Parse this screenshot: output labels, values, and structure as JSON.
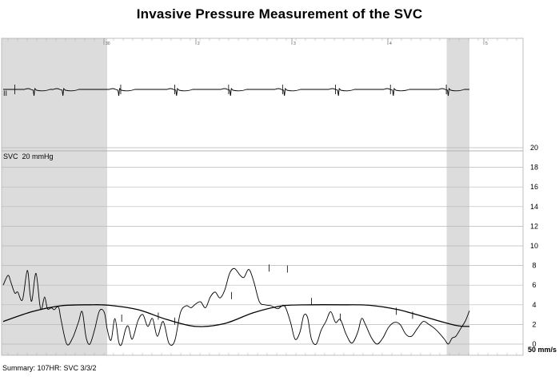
{
  "chart_data": {
    "type": "line",
    "title": "Invasive Pressure Measurement of the SVC",
    "ecg_lead_label": "II",
    "pressure_channel_label": "SVC  20 mmHg",
    "sweep_speed_label": "50 mm/s",
    "summary": "Summary:  107HR: SVC 3/3/2",
    "time_marker_labels": [
      "30",
      "2",
      "3",
      "4",
      "5"
    ],
    "y_axis": {
      "unit": "mmHg",
      "ylim": [
        0,
        20
      ],
      "ticks": [
        0,
        2,
        4,
        6,
        8,
        10,
        12,
        14,
        16,
        18,
        20
      ],
      "grid": true
    },
    "x_axis": {
      "unit": "s",
      "xlim": [
        0,
        5
      ]
    },
    "shaded_regions": [
      {
        "from": 0.0,
        "to": 1.08
      },
      {
        "from": 4.62,
        "to": 4.84
      }
    ],
    "series": [
      {
        "name": "",
        "x": [
          0.0,
          0.05,
          0.08,
          0.12,
          0.15,
          0.2,
          0.25,
          0.28,
          0.3,
          0.34,
          0.38,
          0.4,
          0.43,
          0.46,
          0.5,
          0.53,
          0.56,
          0.58,
          0.6,
          0.66,
          0.72,
          0.78,
          0.82,
          0.86,
          0.9,
          0.95,
          1.0,
          1.05,
          1.08,
          1.12,
          1.16,
          1.2,
          1.23,
          1.27,
          1.3,
          1.34,
          1.4,
          1.45,
          1.5,
          1.55,
          1.6,
          1.66,
          1.72,
          1.78,
          1.84,
          1.9,
          1.95,
          2.0,
          2.05,
          2.1,
          2.15,
          2.2,
          2.25,
          2.3,
          2.35,
          2.4,
          2.46,
          2.5,
          2.55,
          2.6,
          2.66,
          2.72,
          2.78,
          2.85,
          2.92,
          2.98,
          3.03,
          3.08,
          3.12,
          3.16,
          3.2,
          3.25,
          3.3,
          3.35,
          3.4,
          3.45,
          3.5,
          3.56,
          3.62,
          3.68,
          3.72,
          3.76,
          3.82,
          3.88,
          3.94,
          4.0,
          4.06,
          4.12,
          4.18,
          4.24,
          4.3,
          4.36,
          4.42,
          4.5,
          4.58,
          4.62,
          4.66,
          4.7,
          4.75,
          4.8,
          4.84
        ],
        "y": [
          6.0,
          7.0,
          6.3,
          5.2,
          5.3,
          4.5,
          7.5,
          5.0,
          4.5,
          7.2,
          4.0,
          3.6,
          4.8,
          3.6,
          3.7,
          3.5,
          3.8,
          3.6,
          2.5,
          0.0,
          0.6,
          2.2,
          3.3,
          0.7,
          0.0,
          1.5,
          3.4,
          3.2,
          1.5,
          0.4,
          2.6,
          0.2,
          0.0,
          1.5,
          1.8,
          0.5,
          2.4,
          3.0,
          1.8,
          2.6,
          0.8,
          2.3,
          0.1,
          0.3,
          3.2,
          3.9,
          3.7,
          4.1,
          4.3,
          3.7,
          4.8,
          5.3,
          4.7,
          5.5,
          7.2,
          7.7,
          7.0,
          6.8,
          7.6,
          6.4,
          4.3,
          4.0,
          3.9,
          3.6,
          3.9,
          2.3,
          0.5,
          1.2,
          2.9,
          2.7,
          0.5,
          0.0,
          1.4,
          2.3,
          3.3,
          2.2,
          2.5,
          1.0,
          0.1,
          1.2,
          2.6,
          2.0,
          0.7,
          0.0,
          0.6,
          1.7,
          2.2,
          2.0,
          1.0,
          0.8,
          1.6,
          2.3,
          2.0,
          1.4,
          0.5,
          0.0,
          0.6,
          0.8,
          1.6,
          2.4,
          3.4
        ]
      },
      {
        "name": "",
        "x": [
          0.0,
          0.3,
          0.6,
          0.9,
          1.1,
          1.4,
          1.7,
          2.0,
          2.3,
          2.6,
          2.9,
          3.2,
          3.5,
          3.8,
          4.1,
          4.4,
          4.7,
          4.84
        ],
        "y": [
          2.3,
          3.3,
          3.9,
          4.0,
          3.95,
          3.5,
          2.5,
          1.8,
          2.1,
          3.2,
          3.9,
          4.0,
          4.0,
          3.95,
          3.5,
          2.7,
          1.9,
          1.8
        ]
      }
    ],
    "ecg_beats_x": [
      0.32,
      0.62,
      1.2,
      1.8,
      2.36,
      2.92,
      3.48,
      4.05,
      4.62
    ],
    "ecg_tick_marks_x": [
      0.12,
      1.22,
      1.78,
      2.34,
      2.9,
      3.45,
      4.02,
      4.6
    ],
    "pressure_tick_marks": [
      {
        "x": 1.23,
        "y": 2.6
      },
      {
        "x": 1.61,
        "y": 2.8
      },
      {
        "x": 1.78,
        "y": 2.3
      },
      {
        "x": 2.37,
        "y": 4.9
      },
      {
        "x": 2.76,
        "y": 7.7
      },
      {
        "x": 2.95,
        "y": 7.6
      },
      {
        "x": 3.2,
        "y": 4.3
      },
      {
        "x": 3.5,
        "y": 2.7
      },
      {
        "x": 4.08,
        "y": 3.3
      },
      {
        "x": 4.25,
        "y": 2.9
      }
    ]
  }
}
